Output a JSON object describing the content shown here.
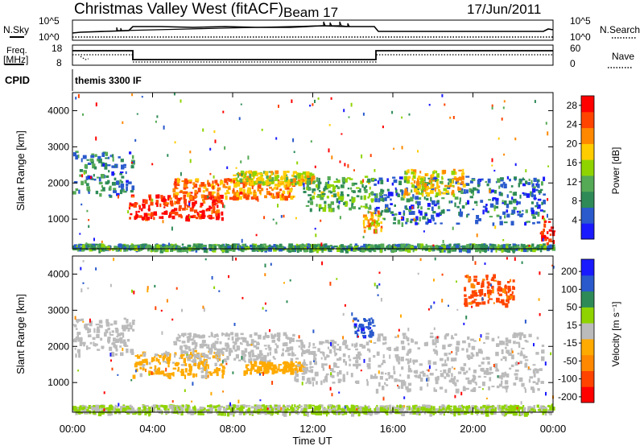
{
  "header": {
    "title": "Christmas Valley West (fitACF)",
    "beam": "Beam 17",
    "date": "17/Jun/2011"
  },
  "strips": {
    "nsky_label": "N.Sky",
    "nsky_top": "10^5",
    "nsky_bottom": "10^0",
    "nsearch_label": "N.Search",
    "nsearch_top": "10^5",
    "nsearch_bottom": "10^0",
    "freq_label_1": "Freq.",
    "freq_label_2": "[MHz]",
    "freq_top": "18",
    "freq_bottom": "8",
    "nave_label": "Nave",
    "nave_top": "60",
    "nave_bottom": "0",
    "cpid_label": "CPID",
    "cpid_value": "themis 3300 IF"
  },
  "colors": {
    "power": [
      "#1a1aff",
      "#2a5acc",
      "#2e8b57",
      "#55aa55",
      "#8fd400",
      "#ffcc00",
      "#ff8800",
      "#ff4400",
      "#ff0000"
    ],
    "velocity": [
      "#ff0000",
      "#ff4400",
      "#ff8800",
      "#ffaa00",
      "#bbbbbb",
      "#8fd400",
      "#2e8b57",
      "#2a5acc",
      "#1a1aff"
    ],
    "ground": "#bbbbbb"
  },
  "chart_data": [
    {
      "type": "heatmap",
      "title": "Power",
      "ylabel": "Slant Range [km]",
      "xlabel": "Time UT",
      "x_ticks": [
        "00:00",
        "04:00",
        "08:00",
        "12:00",
        "16:00",
        "20:00",
        "00:00"
      ],
      "y_ticks": [
        1000,
        2000,
        3000,
        4000
      ],
      "ylim": [
        180,
        4500
      ],
      "colorbar": {
        "label": "Power [dB]",
        "ticks": [
          "4",
          "8",
          "12",
          "16",
          "20",
          "24",
          "28"
        ],
        "range": [
          0,
          30
        ]
      },
      "bands": [
        {
          "t0": 0.0,
          "t1": 3.0,
          "r0": 1650,
          "r1": 2900,
          "value": 8
        },
        {
          "t0": 2.8,
          "t1": 7.5,
          "r0": 1050,
          "r1": 1700,
          "value": 27
        },
        {
          "t0": 5.0,
          "t1": 11.0,
          "r0": 1600,
          "r1": 2150,
          "value": 22
        },
        {
          "t0": 8.0,
          "t1": 12.0,
          "r0": 2000,
          "r1": 2350,
          "value": 17
        },
        {
          "t0": 11.5,
          "t1": 15.0,
          "r0": 1300,
          "r1": 2200,
          "value": 12
        },
        {
          "t0": 14.5,
          "t1": 15.5,
          "r0": 700,
          "r1": 1300,
          "value": 20
        },
        {
          "t0": 15.0,
          "t1": 23.5,
          "r0": 900,
          "r1": 2200,
          "value": 7
        },
        {
          "t0": 16.5,
          "t1": 19.5,
          "r0": 1700,
          "r1": 2400,
          "value": 18
        },
        {
          "t0": 23.3,
          "t1": 24.0,
          "r0": 350,
          "r1": 1100,
          "value": 28
        },
        {
          "t0": 0.0,
          "t1": 24.0,
          "r0": 180,
          "r1": 330,
          "value": 10
        }
      ]
    },
    {
      "type": "heatmap",
      "title": "Velocity",
      "ylabel": "Slant Range [km]",
      "xlabel": "Time UT",
      "x_ticks": [
        "00:00",
        "04:00",
        "08:00",
        "12:00",
        "16:00",
        "20:00",
        "00:00"
      ],
      "y_ticks": [
        1000,
        2000,
        3000,
        4000
      ],
      "ylim": [
        180,
        4500
      ],
      "colorbar": {
        "label": "Velocity [m s⁻¹]",
        "ticks": [
          "200",
          "100",
          "50",
          "15",
          "-15",
          "-50",
          "-100",
          "-200"
        ],
        "range": [
          -250,
          250
        ]
      },
      "bands": [
        {
          "t0": 0.0,
          "t1": 3.0,
          "r0": 1800,
          "r1": 2800,
          "value": 0
        },
        {
          "t0": 3.0,
          "t1": 7.5,
          "r0": 1200,
          "r1": 1900,
          "value": -40
        },
        {
          "t0": 5.0,
          "t1": 11.0,
          "r0": 1600,
          "r1": 2400,
          "value": 0
        },
        {
          "t0": 8.5,
          "t1": 11.5,
          "r0": 1300,
          "r1": 1600,
          "value": -60
        },
        {
          "t0": 11.0,
          "t1": 15.0,
          "r0": 1000,
          "r1": 2200,
          "value": 0
        },
        {
          "t0": 15.0,
          "t1": 23.5,
          "r0": 800,
          "r1": 2400,
          "value": 0
        },
        {
          "t0": 14.0,
          "t1": 15.0,
          "r0": 2300,
          "r1": 2800,
          "value": 180
        },
        {
          "t0": 19.5,
          "t1": 22.0,
          "r0": 3200,
          "r1": 4000,
          "value": -150
        },
        {
          "t0": 0.0,
          "t1": 24.0,
          "r0": 180,
          "r1": 400,
          "value": 30
        }
      ]
    }
  ]
}
